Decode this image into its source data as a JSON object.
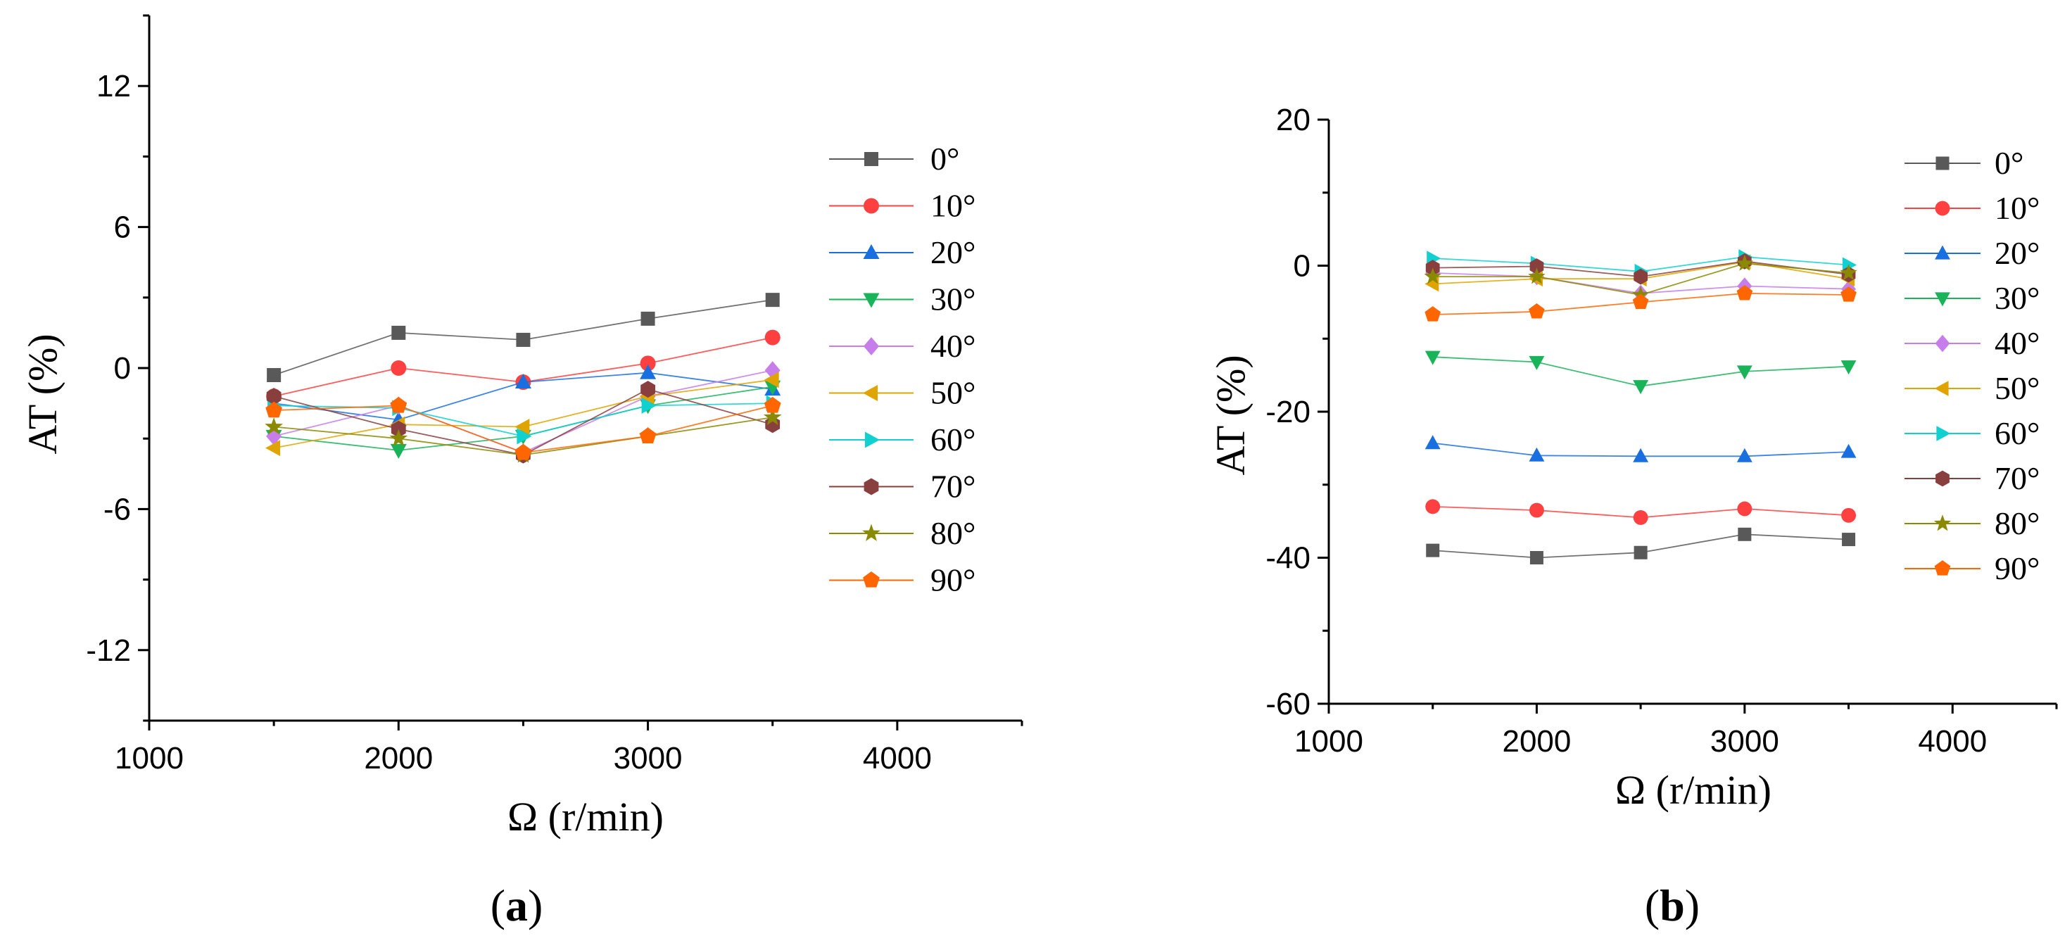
{
  "chart_data": [
    {
      "type": "line",
      "panel": "a",
      "panel_label": {
        "open": "(",
        "letter": "a",
        "close": ")"
      },
      "xlabel": "Ω (r/min)",
      "ylabel": "AT (%)",
      "xlim": [
        1000,
        4500
      ],
      "ylim": [
        -15,
        15
      ],
      "xticks": [
        1000,
        2000,
        3000,
        4000
      ],
      "yticks": [
        -12,
        -6,
        0,
        6,
        12
      ],
      "x": [
        1500,
        2000,
        2500,
        3000,
        3500
      ],
      "series": [
        {
          "name": "0°",
          "marker": "square",
          "color": "#595959",
          "values": [
            -0.3,
            1.5,
            1.2,
            2.1,
            2.9
          ]
        },
        {
          "name": "10°",
          "marker": "circle",
          "color": "#ff4040",
          "values": [
            -1.2,
            0.0,
            -0.6,
            0.2,
            1.3
          ]
        },
        {
          "name": "20°",
          "marker": "triangle-up",
          "color": "#1a6fe0",
          "values": [
            -1.5,
            -2.2,
            -0.6,
            -0.2,
            -0.9
          ]
        },
        {
          "name": "30°",
          "marker": "triangle-down",
          "color": "#19b35a",
          "values": [
            -2.9,
            -3.5,
            -2.9,
            -1.6,
            -0.8
          ]
        },
        {
          "name": "40°",
          "marker": "diamond",
          "color": "#c77dea",
          "values": [
            -2.9,
            -1.6,
            -3.6,
            -1.2,
            -0.1
          ]
        },
        {
          "name": "50°",
          "marker": "triangle-left",
          "color": "#e0a400",
          "values": [
            -3.4,
            -2.4,
            -2.5,
            -1.2,
            -0.5
          ]
        },
        {
          "name": "60°",
          "marker": "triangle-right",
          "color": "#10d0d0",
          "values": [
            -1.6,
            -1.7,
            -2.9,
            -1.6,
            -1.5
          ]
        },
        {
          "name": "70°",
          "marker": "hexagon",
          "color": "#8a3f3f",
          "values": [
            -1.2,
            -2.6,
            -3.7,
            -0.9,
            -2.4
          ]
        },
        {
          "name": "80°",
          "marker": "star",
          "color": "#8a8a00",
          "values": [
            -2.5,
            -3.0,
            -3.7,
            -2.9,
            -2.1
          ]
        },
        {
          "name": "90°",
          "marker": "pentagon",
          "color": "#ff6600",
          "values": [
            -1.8,
            -1.6,
            -3.6,
            -2.9,
            -1.6
          ]
        }
      ]
    },
    {
      "type": "line",
      "panel": "b",
      "panel_label": {
        "open": "(",
        "letter": "b",
        "close": ")"
      },
      "xlabel": "Ω (r/min)",
      "ylabel": "AT (%)",
      "xlim": [
        1000,
        4500
      ],
      "ylim": [
        -60,
        20
      ],
      "xticks": [
        1000,
        2000,
        3000,
        4000
      ],
      "yticks": [
        -60,
        -40,
        -20,
        0,
        20
      ],
      "x": [
        1500,
        2000,
        2500,
        3000,
        3500
      ],
      "series": [
        {
          "name": "0°",
          "marker": "square",
          "color": "#595959",
          "values": [
            -39.0,
            -40.0,
            -39.3,
            -36.8,
            -37.5
          ]
        },
        {
          "name": "10°",
          "marker": "circle",
          "color": "#ff4040",
          "values": [
            -33.0,
            -33.5,
            -34.5,
            -33.3,
            -34.2
          ]
        },
        {
          "name": "20°",
          "marker": "triangle-up",
          "color": "#1a6fe0",
          "values": [
            -24.3,
            -26.0,
            -26.1,
            -26.1,
            -25.5
          ]
        },
        {
          "name": "30°",
          "marker": "triangle-down",
          "color": "#19b35a",
          "values": [
            -12.5,
            -13.2,
            -16.5,
            -14.5,
            -13.8
          ]
        },
        {
          "name": "40°",
          "marker": "diamond",
          "color": "#c77dea",
          "values": [
            -1.0,
            -1.5,
            -3.8,
            -2.8,
            -3.2
          ]
        },
        {
          "name": "50°",
          "marker": "triangle-left",
          "color": "#e0a400",
          "values": [
            -2.5,
            -1.8,
            -1.8,
            0.5,
            -1.8
          ]
        },
        {
          "name": "60°",
          "marker": "triangle-right",
          "color": "#10d0d0",
          "values": [
            1.0,
            0.3,
            -0.8,
            1.2,
            0.1
          ]
        },
        {
          "name": "70°",
          "marker": "hexagon",
          "color": "#8a3f3f",
          "values": [
            -0.3,
            -0.1,
            -1.5,
            0.6,
            -1.2
          ]
        },
        {
          "name": "80°",
          "marker": "star",
          "color": "#8a8a00",
          "values": [
            -1.5,
            -1.5,
            -4.0,
            0.3,
            -1.0
          ]
        },
        {
          "name": "90°",
          "marker": "pentagon",
          "color": "#ff6600",
          "values": [
            -6.7,
            -6.3,
            -5.0,
            -3.8,
            -4.0
          ]
        }
      ]
    }
  ]
}
